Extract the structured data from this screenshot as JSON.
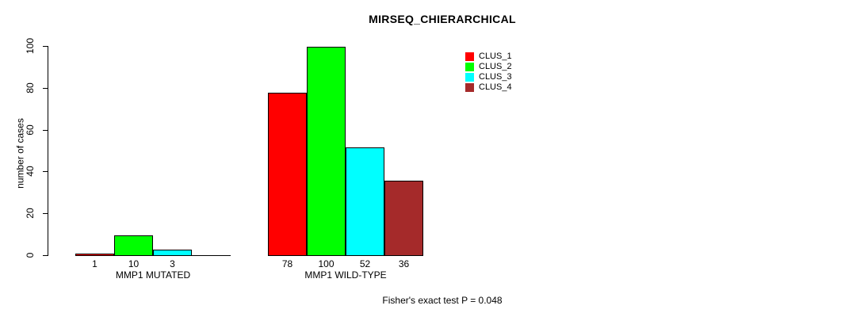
{
  "chart_data": {
    "type": "bar",
    "title": "MIRSEQ_CHIERARCHICAL",
    "ylabel": "number of cases",
    "xlabel": "",
    "ylim": [
      0,
      100
    ],
    "yticks": [
      "0",
      "20",
      "40",
      "60",
      "80",
      "100"
    ],
    "categories": [
      "MMP1 MUTATED",
      "MMP1 WILD-TYPE"
    ],
    "series": [
      {
        "name": "CLUS_1",
        "color": "#ff0000",
        "values": [
          1,
          78
        ]
      },
      {
        "name": "CLUS_2",
        "color": "#00ff00",
        "values": [
          10,
          100
        ]
      },
      {
        "name": "CLUS_3",
        "color": "#00ffff",
        "values": [
          3,
          52
        ]
      },
      {
        "name": "CLUS_4",
        "color": "#a52a2a",
        "values": [
          0,
          36
        ]
      }
    ],
    "bar_value_labels": true,
    "legend_position": "top-right",
    "grid": false,
    "background": "#ffffff",
    "annotation": "Fisher's exact test P = 0.048"
  }
}
